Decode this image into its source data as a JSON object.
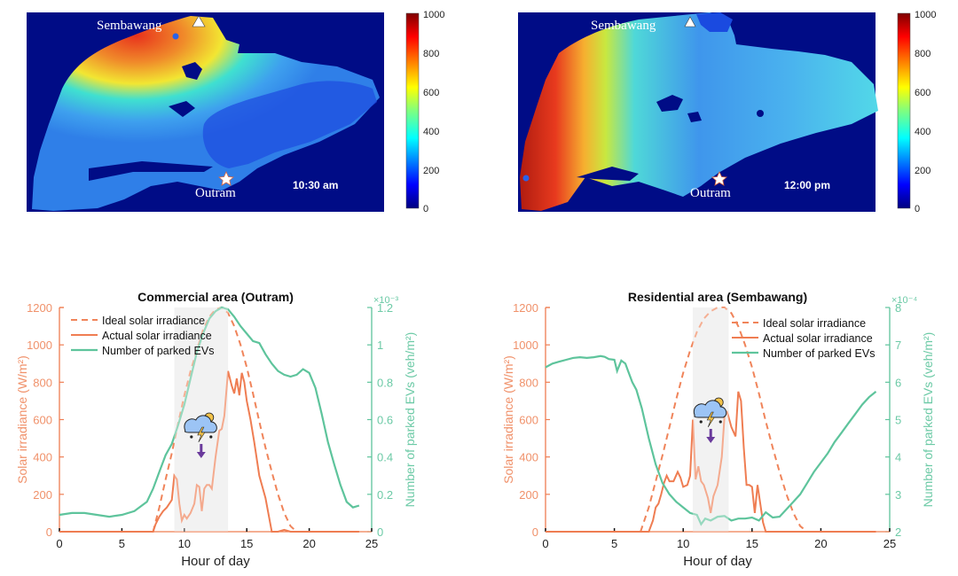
{
  "maps": [
    {
      "time_label": "10:30 am",
      "markers": {
        "north": "Sembawang",
        "south": "Outram"
      },
      "colorbar": {
        "ticks": [
          "1000",
          "800",
          "600",
          "400",
          "200",
          "0"
        ],
        "range": [
          0,
          1000
        ]
      },
      "hot_region": "north-west"
    },
    {
      "time_label": "12:00 pm",
      "markers": {
        "north": "Sembawang",
        "south": "Outram"
      },
      "colorbar": {
        "ticks": [
          "1000",
          "800",
          "600",
          "400",
          "200",
          "0"
        ],
        "range": [
          0,
          1000
        ]
      },
      "hot_region": "west"
    }
  ],
  "colors": {
    "ideal": "#f0845a",
    "actual": "#ef7d52",
    "evs": "#5ec49c",
    "shade": "#ececec",
    "arrow": "#6a3a9c",
    "map_bg": "#000c86"
  },
  "chart_data": [
    {
      "type": "line",
      "title": "Commercial area (Outram)",
      "xlabel": "Hour of day",
      "ylabel": "Solar irradiance (W/m²)",
      "y2label": "Number of parked EVs (veh/m²)",
      "y2_exponent": "×10⁻³",
      "xlim": [
        0,
        25
      ],
      "ylim": [
        0,
        1200
      ],
      "y2lim": [
        0,
        1.2
      ],
      "xticks": [
        "0",
        "5",
        "10",
        "15",
        "20",
        "25"
      ],
      "yticks": [
        "0",
        "200",
        "400",
        "600",
        "800",
        "1000",
        "1200"
      ],
      "y2ticks": [
        "0",
        "0.2",
        "0.4",
        "0.6",
        "0.8",
        "1",
        "1.2"
      ],
      "shaded_interval": [
        9.2,
        13.5
      ],
      "legend": [
        "Ideal solar irradiance",
        "Actual solar irradiance",
        "Number of parked EVs"
      ],
      "legend_position": "top-left",
      "series": [
        {
          "name": "Ideal solar irradiance",
          "axis": "left",
          "style": "dashed",
          "x": [
            7.5,
            8,
            8.5,
            9,
            9.5,
            10,
            10.5,
            11,
            11.5,
            12,
            12.5,
            13,
            13.5,
            14,
            14.5,
            15,
            15.5,
            16,
            16.5,
            17,
            17.5,
            18,
            18.5,
            19,
            19.5
          ],
          "y": [
            0,
            130,
            280,
            420,
            580,
            730,
            860,
            970,
            1080,
            1150,
            1190,
            1200,
            1170,
            1100,
            1000,
            880,
            740,
            590,
            450,
            320,
            200,
            100,
            30,
            0,
            0
          ]
        },
        {
          "name": "Actual solar irradiance",
          "axis": "left",
          "style": "solid",
          "x": [
            0,
            7.5,
            7.7,
            8,
            8.3,
            8.6,
            9,
            9.2,
            9.4,
            9.6,
            9.8,
            10,
            10.2,
            10.5,
            10.8,
            11,
            11.2,
            11.4,
            11.6,
            11.8,
            12,
            12.2,
            12.5,
            12.8,
            13,
            13.2,
            13.5,
            13.8,
            14,
            14.2,
            14.4,
            14.6,
            14.8,
            15,
            15.3,
            15.6,
            16,
            16.5,
            17,
            17.5,
            18,
            18.5,
            19,
            24
          ],
          "y": [
            0,
            0,
            40,
            80,
            110,
            130,
            170,
            300,
            280,
            150,
            60,
            90,
            70,
            100,
            150,
            250,
            240,
            110,
            230,
            250,
            250,
            230,
            400,
            540,
            550,
            620,
            860,
            780,
            740,
            820,
            730,
            850,
            800,
            700,
            600,
            480,
            300,
            180,
            0,
            0,
            10,
            0,
            0,
            0
          ]
        },
        {
          "name": "Number of parked EVs",
          "axis": "right",
          "style": "solid",
          "x": [
            0,
            1,
            2,
            3,
            4,
            5,
            6,
            7,
            7.5,
            8,
            8.5,
            9,
            9.5,
            10,
            10.5,
            11,
            11.5,
            12,
            12.5,
            13,
            13.5,
            14,
            14.5,
            15,
            15.5,
            16,
            16.5,
            17,
            17.5,
            18,
            18.5,
            19,
            19.5,
            20,
            20.5,
            21,
            21.5,
            22,
            22.5,
            23,
            23.5,
            24
          ],
          "y": [
            0.09,
            0.1,
            0.1,
            0.09,
            0.08,
            0.09,
            0.11,
            0.16,
            0.23,
            0.32,
            0.41,
            0.47,
            0.57,
            0.68,
            0.82,
            0.96,
            1.06,
            1.14,
            1.18,
            1.2,
            1.19,
            1.15,
            1.1,
            1.06,
            1.02,
            1.01,
            0.95,
            0.9,
            0.86,
            0.84,
            0.83,
            0.84,
            0.87,
            0.85,
            0.77,
            0.63,
            0.48,
            0.36,
            0.25,
            0.16,
            0.13,
            0.14
          ]
        }
      ]
    },
    {
      "type": "line",
      "title": "Residential area (Sembawang)",
      "xlabel": "Hour of day",
      "ylabel": "Solar irradiance (W/m²)",
      "y2label": "Number of parked EVs (veh/m²)",
      "y2_exponent": "×10⁻⁴",
      "xlim": [
        0,
        25
      ],
      "ylim": [
        0,
        1200
      ],
      "y2lim": [
        2,
        8
      ],
      "xticks": [
        "0",
        "5",
        "10",
        "15",
        "20",
        "25"
      ],
      "yticks": [
        "0",
        "200",
        "400",
        "600",
        "800",
        "1000",
        "1200"
      ],
      "y2ticks": [
        "2",
        "3",
        "4",
        "5",
        "6",
        "7",
        "8"
      ],
      "shaded_interval": [
        10.7,
        13.3
      ],
      "legend": [
        "Ideal solar irradiance",
        "Actual solar irradiance",
        "Number of parked EVs"
      ],
      "legend_position": "top-right",
      "series": [
        {
          "name": "Ideal solar irradiance",
          "axis": "left",
          "style": "dashed",
          "x": [
            6.9,
            7.5,
            8,
            8.5,
            9,
            9.5,
            10,
            10.5,
            11,
            11.5,
            12,
            12.5,
            13,
            13.5,
            14,
            14.5,
            15,
            15.5,
            16,
            16.5,
            17,
            17.5,
            18,
            18.5,
            19,
            19.5
          ],
          "y": [
            0,
            130,
            270,
            410,
            560,
            710,
            850,
            970,
            1070,
            1140,
            1180,
            1200,
            1200,
            1170,
            1100,
            1000,
            880,
            740,
            590,
            450,
            320,
            200,
            100,
            30,
            0,
            0
          ]
        },
        {
          "name": "Actual solar irradiance",
          "axis": "left",
          "style": "solid",
          "x": [
            0,
            7.5,
            7.8,
            8,
            8.2,
            8.4,
            8.6,
            8.8,
            9,
            9.3,
            9.6,
            9.8,
            10,
            10.3,
            10.5,
            10.7,
            10.9,
            11.1,
            11.3,
            11.5,
            11.8,
            12,
            12.2,
            12.5,
            12.8,
            13,
            13.2,
            13.5,
            13.8,
            14,
            14.2,
            14.4,
            14.6,
            14.8,
            15,
            15.2,
            15.4,
            15.6,
            15.8,
            16,
            16.2,
            24
          ],
          "y": [
            0,
            0,
            60,
            130,
            150,
            200,
            260,
            300,
            270,
            270,
            320,
            290,
            240,
            250,
            300,
            600,
            280,
            350,
            270,
            250,
            180,
            100,
            190,
            250,
            400,
            620,
            640,
            560,
            510,
            750,
            700,
            450,
            250,
            250,
            240,
            100,
            250,
            150,
            50,
            0,
            0,
            0
          ]
        },
        {
          "name": "Number of parked EVs",
          "axis": "right",
          "style": "solid",
          "x": [
            0,
            0.5,
            1,
            1.5,
            2,
            2.5,
            3,
            3.5,
            4,
            4.3,
            4.6,
            5,
            5.2,
            5.5,
            5.8,
            6,
            6.3,
            6.6,
            7,
            7.5,
            8,
            8.5,
            9,
            9.5,
            10,
            10.5,
            11,
            11.3,
            11.6,
            12,
            12.5,
            13,
            13.5,
            14,
            14.5,
            15,
            15.5,
            16,
            16.5,
            17,
            17.5,
            18,
            18.5,
            19,
            19.5,
            20,
            20.5,
            21,
            21.5,
            22,
            22.5,
            23,
            23.5,
            24
          ],
          "y": [
            6.4,
            6.5,
            6.55,
            6.6,
            6.65,
            6.67,
            6.65,
            6.67,
            6.7,
            6.68,
            6.62,
            6.6,
            6.3,
            6.58,
            6.5,
            6.3,
            6.0,
            5.8,
            5.3,
            4.5,
            3.8,
            3.3,
            3.0,
            2.8,
            2.65,
            2.5,
            2.45,
            2.2,
            2.35,
            2.3,
            2.4,
            2.42,
            2.3,
            2.35,
            2.35,
            2.38,
            2.3,
            2.52,
            2.38,
            2.4,
            2.6,
            2.8,
            3.0,
            3.3,
            3.6,
            3.85,
            4.1,
            4.4,
            4.65,
            4.9,
            5.15,
            5.4,
            5.6,
            5.75
          ]
        }
      ]
    }
  ]
}
